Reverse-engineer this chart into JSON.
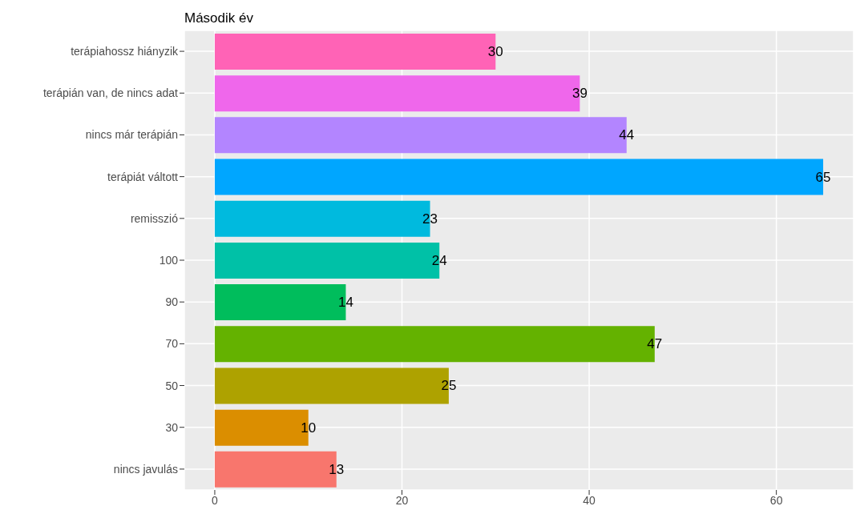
{
  "chart_data": {
    "type": "bar",
    "orientation": "horizontal",
    "title": "Második év",
    "categories": [
      "terápiahossz hiányzik",
      "terápián van, de nincs adat",
      "nincs már terápián",
      "terápiát váltott",
      "remisszió",
      "100",
      "90",
      "70",
      "50",
      "30",
      "nincs javulás"
    ],
    "values": [
      30,
      39,
      44,
      65,
      23,
      24,
      14,
      47,
      25,
      10,
      13
    ],
    "colors": [
      "#ff63b6",
      "#ef67eb",
      "#b385ff",
      "#00a6ff",
      "#00bade",
      "#00c1a7",
      "#00bd5c",
      "#64b200",
      "#aea200",
      "#db8e00",
      "#f8766d"
    ],
    "xlim": [
      -3.25,
      68.25
    ],
    "xticks": [
      0,
      20,
      40,
      60
    ],
    "grid": true,
    "data_labels": true
  }
}
